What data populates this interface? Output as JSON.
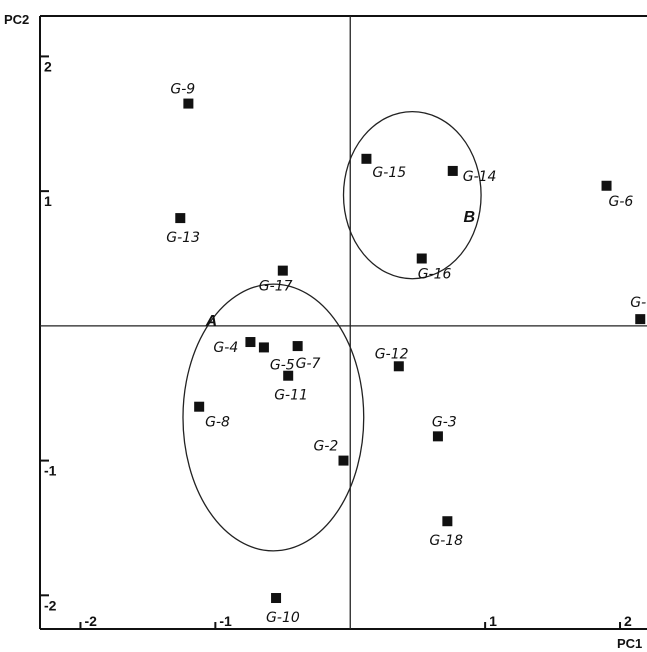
{
  "chart_data": {
    "type": "scatter",
    "xlabel": "PC1",
    "ylabel": "PC2",
    "xlim": [
      -2.3,
      2.2
    ],
    "ylim": [
      -2.25,
      2.3
    ],
    "grid": false,
    "x_ticks": [
      {
        "value": -2,
        "label": "-2"
      },
      {
        "value": -1,
        "label": "-1"
      },
      {
        "value": 1,
        "label": "1"
      },
      {
        "value": 2,
        "label": "2"
      }
    ],
    "y_ticks": [
      {
        "value": 2,
        "label": "2"
      },
      {
        "value": 1,
        "label": "1"
      },
      {
        "value": -1,
        "label": "-1"
      },
      {
        "value": -2,
        "label": "-2"
      }
    ],
    "points": [
      {
        "label": "G-9",
        "x": -1.2,
        "y": 1.65
      },
      {
        "label": "G-13",
        "x": -1.26,
        "y": 0.8
      },
      {
        "label": "G-17",
        "x": -0.5,
        "y": 0.41
      },
      {
        "label": "G-15",
        "x": 0.12,
        "y": 1.24
      },
      {
        "label": "G-14",
        "x": 0.76,
        "y": 1.15
      },
      {
        "label": "G-16",
        "x": 0.53,
        "y": 0.5
      },
      {
        "label": "G-6",
        "x": 1.9,
        "y": 1.04
      },
      {
        "label": "G-",
        "x": 2.15,
        "y": 0.05
      },
      {
        "label": "G-4",
        "x": -0.74,
        "y": -0.12
      },
      {
        "label": "G-5",
        "x": -0.64,
        "y": -0.16
      },
      {
        "label": "G-7",
        "x": -0.39,
        "y": -0.15
      },
      {
        "label": "G-11",
        "x": -0.46,
        "y": -0.37
      },
      {
        "label": "G-12",
        "x": 0.36,
        "y": -0.3
      },
      {
        "label": "G-8",
        "x": -1.12,
        "y": -0.6
      },
      {
        "label": "G-3",
        "x": 0.65,
        "y": -0.82
      },
      {
        "label": "G-2",
        "x": -0.05,
        "y": -1.0
      },
      {
        "label": "G-18",
        "x": 0.72,
        "y": -1.45
      },
      {
        "label": "G-10",
        "x": -0.55,
        "y": -2.02
      }
    ],
    "groups": [
      {
        "label": "A",
        "cx": -0.57,
        "cy": -0.68,
        "rx": 0.67,
        "ry": 0.99
      },
      {
        "label": "B",
        "cx": 0.46,
        "cy": 0.97,
        "rx": 0.51,
        "ry": 0.62
      }
    ],
    "legend": "none"
  }
}
